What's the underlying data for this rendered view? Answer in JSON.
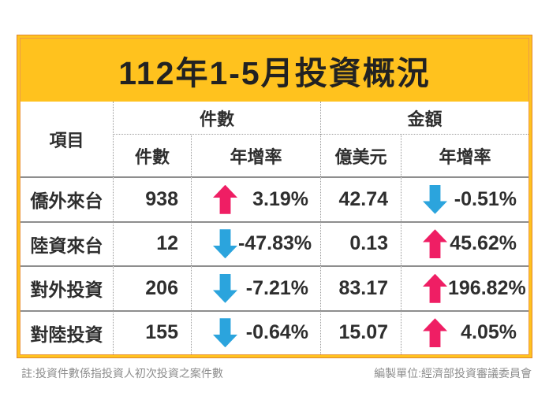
{
  "title": "112年1-5月投資概況",
  "chart_data": {
    "type": "table",
    "title": "112年1-5月投資概況",
    "item_column_header": "項目",
    "column_groups": [
      {
        "label": "件數",
        "columns": [
          "件數",
          "年增率"
        ]
      },
      {
        "label": "金額",
        "columns": [
          "億美元",
          "年增率"
        ]
      }
    ],
    "rows": [
      {
        "item": "僑外來台",
        "count": "938",
        "count_trend": "up",
        "count_yoy": "3.19%",
        "amount_usd_100m": "42.74",
        "amount_trend": "down",
        "amount_yoy": "-0.51%"
      },
      {
        "item": "陸資來台",
        "count": "12",
        "count_trend": "down",
        "count_yoy": "-47.83%",
        "amount_usd_100m": "0.13",
        "amount_trend": "up",
        "amount_yoy": "45.62%"
      },
      {
        "item": "對外投資",
        "count": "206",
        "count_trend": "down",
        "count_yoy": "-7.21%",
        "amount_usd_100m": "83.17",
        "amount_trend": "up",
        "amount_yoy": "196.82%"
      },
      {
        "item": "對陸投資",
        "count": "155",
        "count_trend": "down",
        "count_yoy": "-0.64%",
        "amount_usd_100m": "15.07",
        "amount_trend": "up",
        "amount_yoy": "4.05%"
      }
    ]
  },
  "footer": {
    "note": "註:投資件數係指投資人初次投資之案件數",
    "source": "編製單位:經濟部投資審議委員會"
  },
  "colors": {
    "frame_yellow": "#FFC21E",
    "frame_orange": "#E0862D",
    "up_arrow_pink": "#EF1E64",
    "down_arrow_blue": "#2BA4DD",
    "grid_line_gray": "#8e8e8e"
  }
}
